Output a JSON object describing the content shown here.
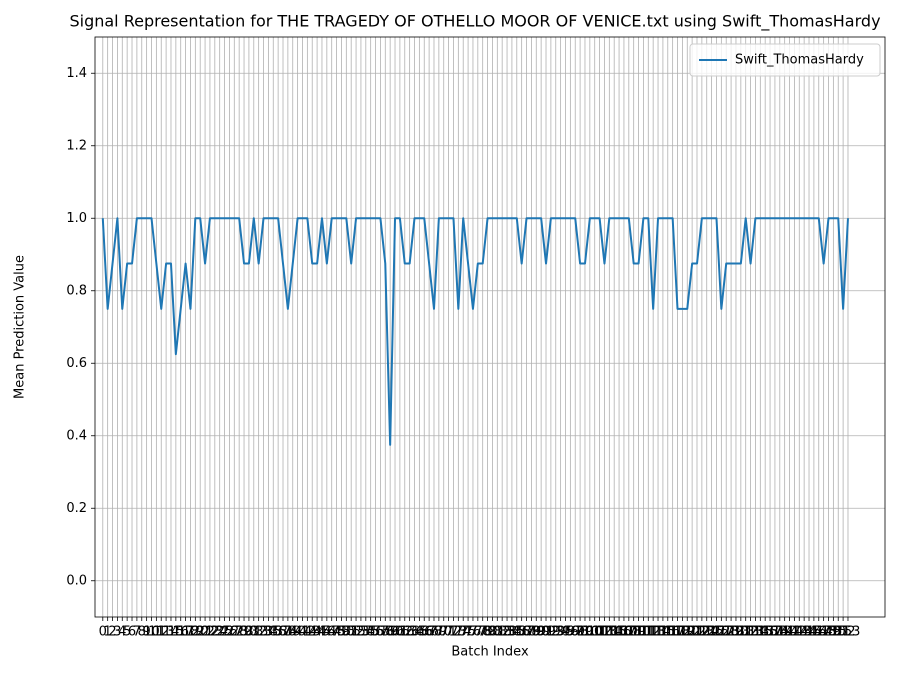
{
  "chart_data": {
    "type": "line",
    "title": "Signal Representation for THE TRAGEDY OF OTHELLO MOOR OF VENICE.txt using Swift_ThomasHardy",
    "xlabel": "Batch Index",
    "ylabel": "Mean Prediction Value",
    "x": [
      0,
      1,
      2,
      3,
      4,
      5,
      6,
      7,
      8,
      9,
      10,
      11,
      12,
      13,
      14,
      15,
      16,
      17,
      18,
      19,
      20,
      21,
      22,
      23,
      24,
      25,
      26,
      27,
      28,
      29,
      30,
      31,
      32,
      33,
      34,
      35,
      36,
      37,
      38,
      39,
      40,
      41,
      42,
      43,
      44,
      45,
      46,
      47,
      48,
      49,
      50,
      51,
      52,
      53,
      54,
      55,
      56,
      57,
      58,
      59,
      60,
      61,
      62,
      63,
      64,
      65,
      66,
      67,
      68,
      69,
      70,
      71,
      72,
      73,
      74,
      75,
      76,
      77,
      78,
      79,
      80,
      81,
      82,
      83,
      84,
      85,
      86,
      87,
      88,
      89,
      90,
      91,
      92,
      93,
      94,
      95,
      96,
      97,
      98,
      99,
      100,
      101,
      102,
      103,
      104,
      105,
      106,
      107,
      108,
      109,
      110,
      111,
      112,
      113,
      114,
      115,
      116,
      117,
      118,
      119,
      120,
      121,
      122,
      123,
      124,
      125,
      126,
      127,
      128,
      129,
      130,
      131,
      132,
      133,
      134,
      135,
      136,
      137,
      138,
      139,
      140,
      141,
      142,
      143,
      144,
      145,
      146,
      147,
      148,
      149,
      150,
      151,
      152,
      153
    ],
    "series": [
      {
        "name": "Swift_ThomasHardy",
        "color": "#1f77b4",
        "values": [
          1.0,
          0.75,
          0.875,
          1.0,
          0.75,
          0.875,
          0.875,
          1.0,
          1.0,
          1.0,
          1.0,
          0.875,
          0.75,
          0.875,
          0.875,
          0.625,
          0.75,
          0.875,
          0.75,
          1.0,
          1.0,
          0.875,
          1.0,
          1.0,
          1.0,
          1.0,
          1.0,
          1.0,
          1.0,
          0.875,
          0.875,
          1.0,
          0.875,
          1.0,
          1.0,
          1.0,
          1.0,
          0.875,
          0.75,
          0.875,
          1.0,
          1.0,
          1.0,
          0.875,
          0.875,
          1.0,
          0.875,
          1.0,
          1.0,
          1.0,
          1.0,
          0.875,
          1.0,
          1.0,
          1.0,
          1.0,
          1.0,
          1.0,
          0.875,
          0.375,
          1.0,
          1.0,
          0.875,
          0.875,
          1.0,
          1.0,
          1.0,
          0.875,
          0.75,
          1.0,
          1.0,
          1.0,
          1.0,
          0.75,
          1.0,
          0.875,
          0.75,
          0.875,
          0.875,
          1.0,
          1.0,
          1.0,
          1.0,
          1.0,
          1.0,
          1.0,
          0.875,
          1.0,
          1.0,
          1.0,
          1.0,
          0.875,
          1.0,
          1.0,
          1.0,
          1.0,
          1.0,
          1.0,
          0.875,
          0.875,
          1.0,
          1.0,
          1.0,
          0.875,
          1.0,
          1.0,
          1.0,
          1.0,
          1.0,
          0.875,
          0.875,
          1.0,
          1.0,
          0.75,
          1.0,
          1.0,
          1.0,
          1.0,
          0.75,
          0.75,
          0.75,
          0.875,
          0.875,
          1.0,
          1.0,
          1.0,
          1.0,
          0.75,
          0.875,
          0.875,
          0.875,
          0.875,
          1.0,
          0.875,
          1.0,
          1.0,
          1.0,
          1.0,
          1.0,
          1.0,
          1.0,
          1.0,
          1.0,
          1.0,
          1.0,
          1.0,
          1.0,
          1.0,
          0.875,
          1.0,
          1.0,
          1.0,
          0.75,
          1.0
        ]
      }
    ],
    "xlim": [
      -1.6,
      160.6
    ],
    "xticks": [
      0,
      1,
      2,
      3,
      4,
      5,
      6,
      7,
      8,
      9,
      10,
      11,
      12,
      13,
      14,
      15,
      16,
      17,
      18,
      19,
      20,
      21,
      22,
      23,
      24,
      25,
      26,
      27,
      28,
      29,
      30,
      31,
      32,
      33,
      34,
      35,
      36,
      37,
      38,
      39,
      40,
      41,
      42,
      43,
      44,
      45,
      46,
      47,
      48,
      49,
      50,
      51,
      52,
      53,
      54,
      55,
      56,
      57,
      58,
      59,
      60,
      61,
      62,
      63,
      64,
      65,
      66,
      67,
      68,
      69,
      70,
      71,
      72,
      73,
      74,
      75,
      76,
      77,
      78,
      79,
      80,
      81,
      82,
      83,
      84,
      85,
      86,
      87,
      88,
      89,
      90,
      91,
      92,
      93,
      94,
      95,
      96,
      97,
      98,
      99,
      100,
      101,
      102,
      103,
      104,
      105,
      106,
      107,
      108,
      109,
      110,
      111,
      112,
      113,
      114,
      115,
      116,
      117,
      118,
      119,
      120,
      121,
      122,
      123,
      124,
      125,
      126,
      127,
      128,
      129,
      130,
      131,
      132,
      133,
      134,
      135,
      136,
      137,
      138,
      139,
      140,
      141,
      142,
      143,
      144,
      145,
      146,
      147,
      148,
      149,
      150,
      151,
      152,
      153
    ],
    "ylim": [
      -0.1,
      1.5
    ],
    "yticks": [
      {
        "value": 0,
        "label": "0.0"
      },
      0.2,
      0.4,
      0.6,
      0.8,
      {
        "value": 1,
        "label": "1.0"
      },
      1.2,
      1.4
    ],
    "grid": true,
    "legend": "upper right"
  }
}
